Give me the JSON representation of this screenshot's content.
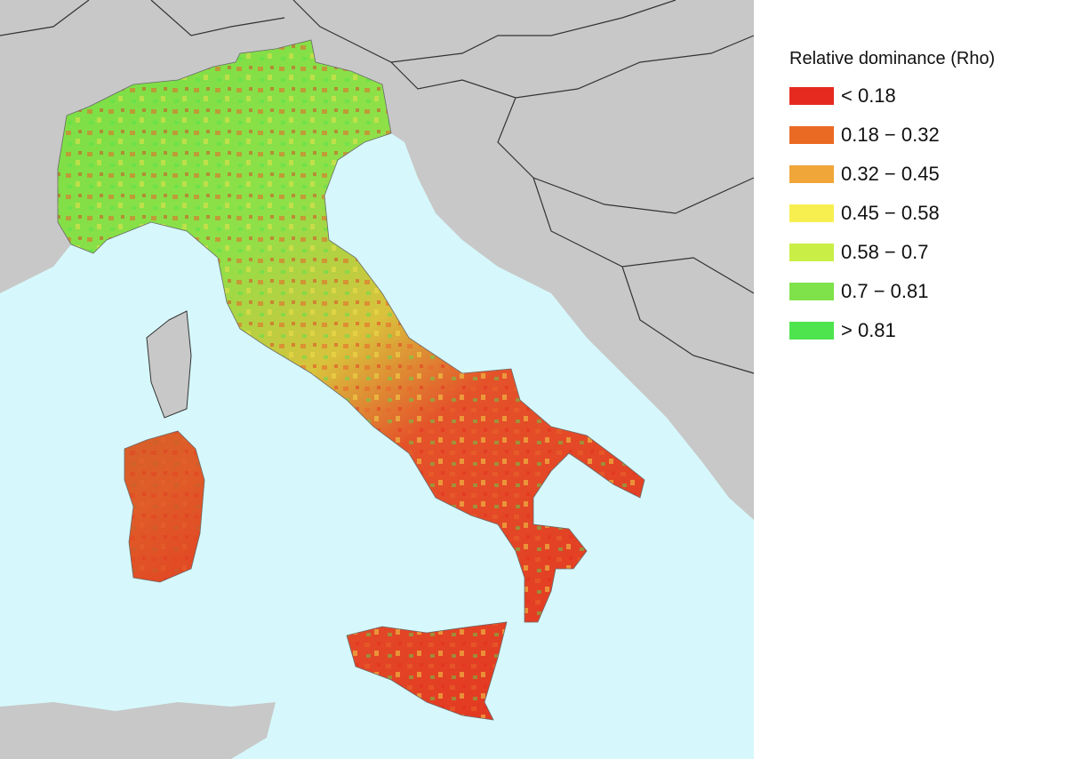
{
  "legend": {
    "title": "Relative dominance (Rho)",
    "items": [
      {
        "label": "< 0.18",
        "color": "#e52a20"
      },
      {
        "label": "0.18 − 0.32",
        "color": "#ea6a24"
      },
      {
        "label": "0.32 − 0.45",
        "color": "#f0a638"
      },
      {
        "label": "0.45 − 0.58",
        "color": "#f7ef50"
      },
      {
        "label": "0.58 − 0.7",
        "color": "#c9ee45"
      },
      {
        "label": "0.7 − 0.81",
        "color": "#7fe24a"
      },
      {
        "label": "> 0.81",
        "color": "#4ee44e"
      }
    ]
  }
}
